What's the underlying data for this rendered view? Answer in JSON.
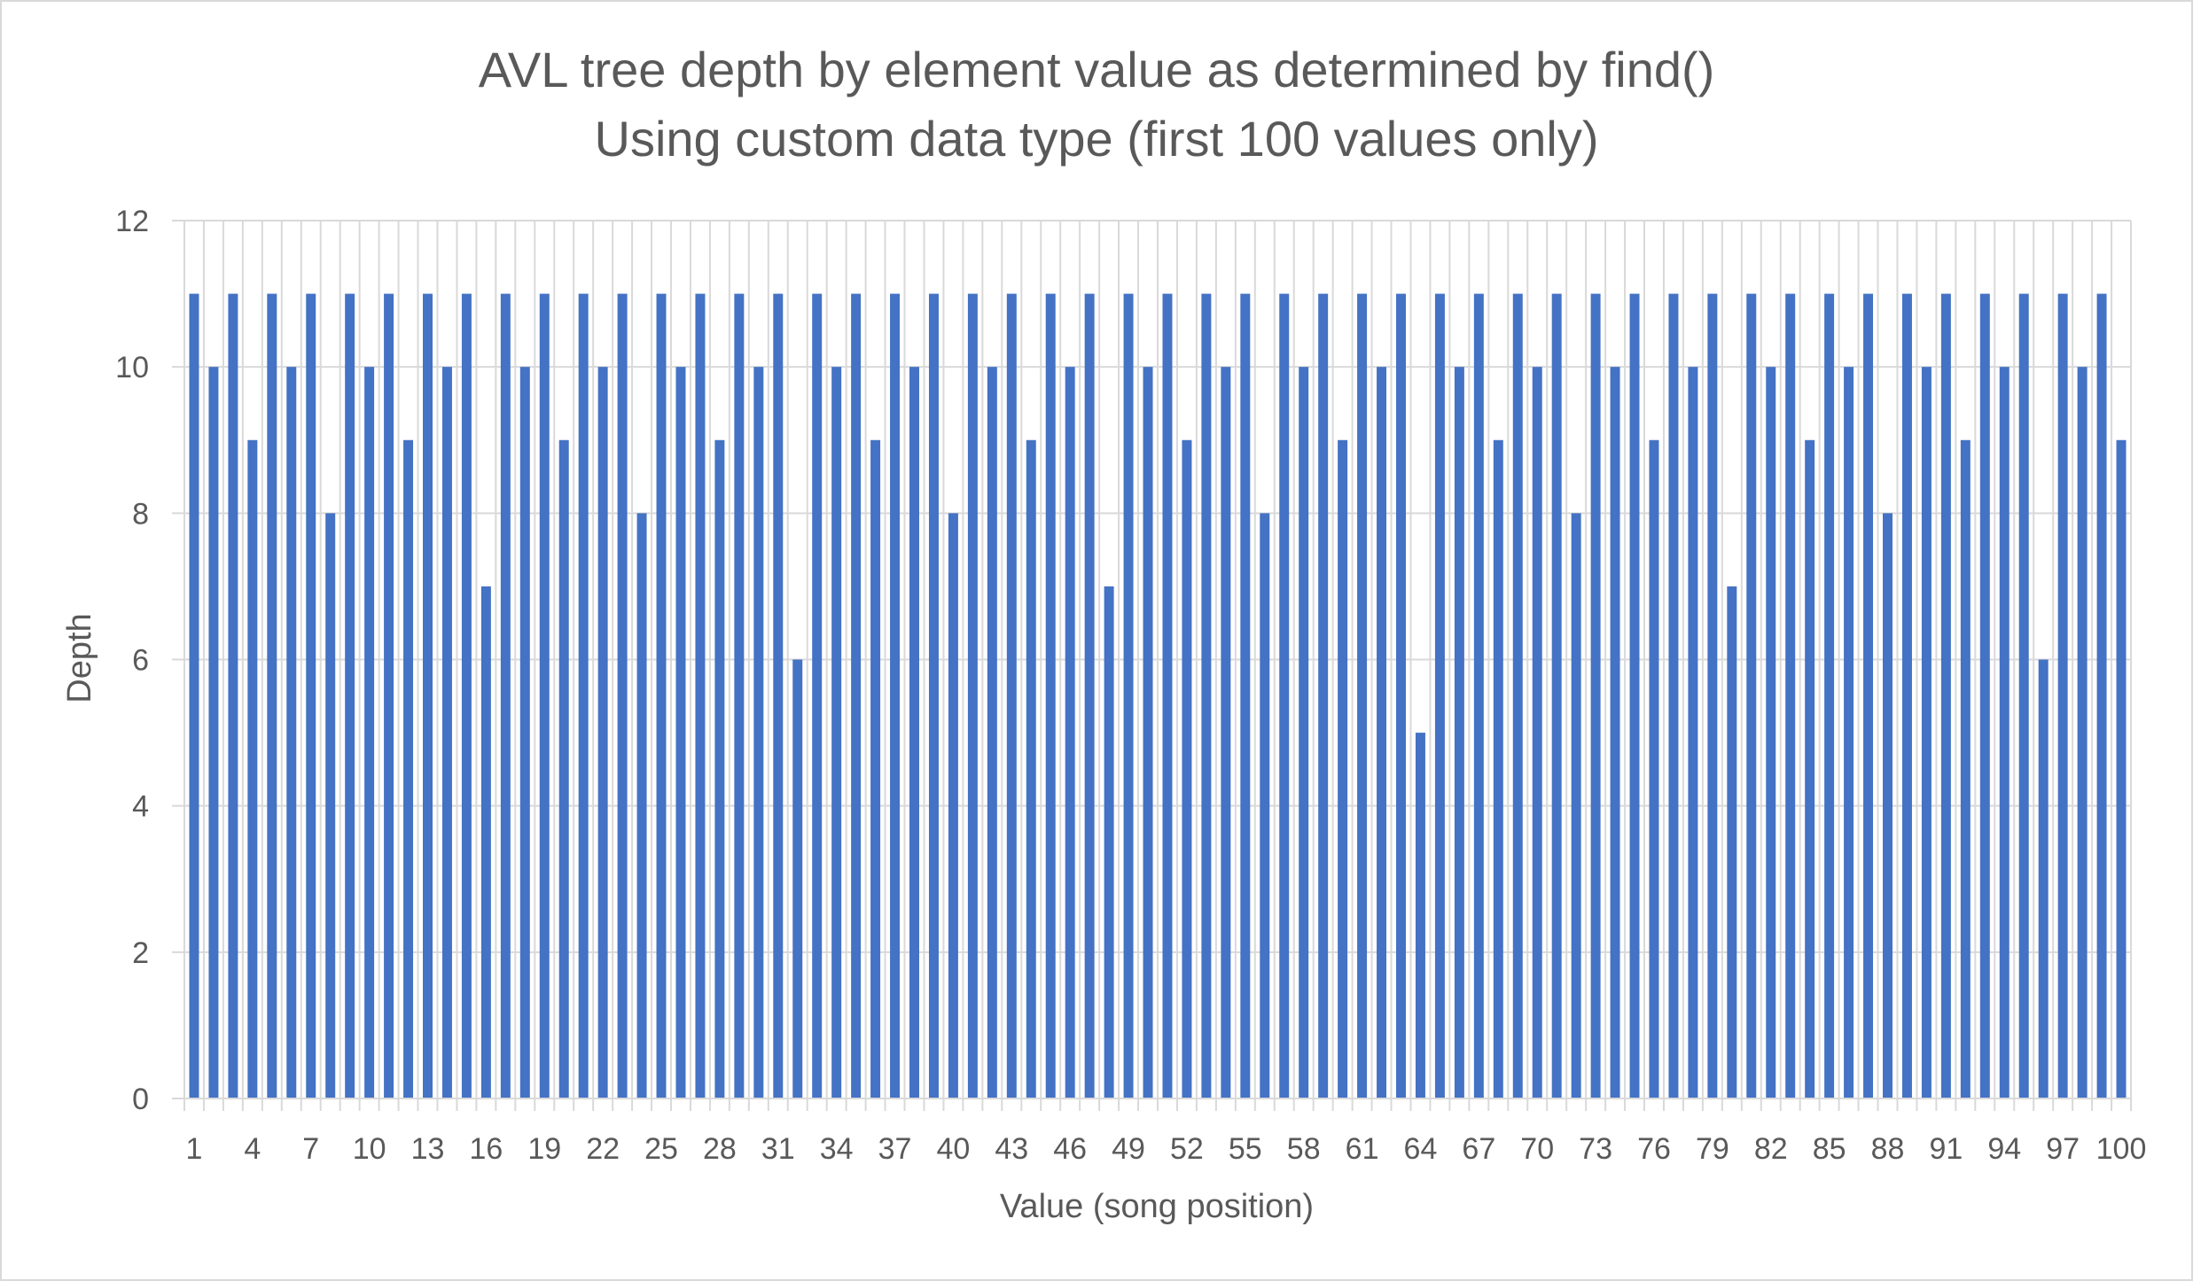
{
  "chart_data": {
    "type": "bar",
    "title": "AVL tree depth by element value as determined by find()",
    "subtitle": "Using custom data type (first 100 values only)",
    "xlabel": "Value (song position)",
    "ylabel": "Depth",
    "ylim": [
      0,
      12
    ],
    "yticks": [
      0,
      2,
      4,
      6,
      8,
      10,
      12
    ],
    "grid": true,
    "legend": "none",
    "bar_color": "#4472c4",
    "categories": [
      1,
      2,
      3,
      4,
      5,
      6,
      7,
      8,
      9,
      10,
      11,
      12,
      13,
      14,
      15,
      16,
      17,
      18,
      19,
      20,
      21,
      22,
      23,
      24,
      25,
      26,
      27,
      28,
      29,
      30,
      31,
      32,
      33,
      34,
      35,
      36,
      37,
      38,
      39,
      40,
      41,
      42,
      43,
      44,
      45,
      46,
      47,
      48,
      49,
      50,
      51,
      52,
      53,
      54,
      55,
      56,
      57,
      58,
      59,
      60,
      61,
      62,
      63,
      64,
      65,
      66,
      67,
      68,
      69,
      70,
      71,
      72,
      73,
      74,
      75,
      76,
      77,
      78,
      79,
      80,
      81,
      82,
      83,
      84,
      85,
      86,
      87,
      88,
      89,
      90,
      91,
      92,
      93,
      94,
      95,
      96,
      97,
      98,
      99,
      100
    ],
    "x_tick_labels": [
      "1",
      "4",
      "7",
      "10",
      "13",
      "16",
      "19",
      "22",
      "25",
      "28",
      "31",
      "34",
      "37",
      "40",
      "43",
      "46",
      "49",
      "52",
      "55",
      "58",
      "61",
      "64",
      "67",
      "70",
      "73",
      "76",
      "79",
      "82",
      "85",
      "88",
      "91",
      "94",
      "97",
      "100"
    ],
    "values": [
      11,
      10,
      11,
      9,
      11,
      10,
      11,
      8,
      11,
      10,
      11,
      9,
      11,
      10,
      11,
      7,
      11,
      10,
      11,
      9,
      11,
      10,
      11,
      8,
      11,
      10,
      11,
      9,
      11,
      10,
      11,
      6,
      11,
      10,
      11,
      9,
      11,
      10,
      11,
      8,
      11,
      10,
      11,
      9,
      11,
      10,
      11,
      7,
      11,
      10,
      11,
      9,
      11,
      10,
      11,
      8,
      11,
      10,
      11,
      9,
      11,
      10,
      11,
      5,
      11,
      10,
      11,
      9,
      11,
      10,
      11,
      8,
      11,
      10,
      11,
      9,
      11,
      10,
      11,
      7,
      11,
      10,
      11,
      9,
      11,
      10,
      11,
      8,
      11,
      10,
      11,
      9,
      11,
      10,
      11,
      6,
      11,
      10,
      11,
      9
    ]
  }
}
